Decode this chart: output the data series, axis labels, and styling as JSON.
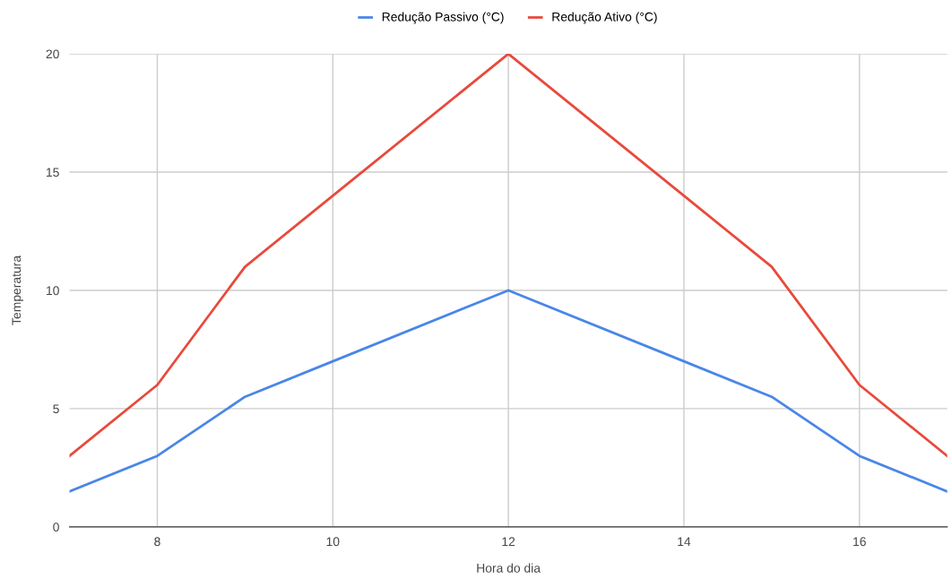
{
  "chart_data": {
    "type": "line",
    "xlabel": "Hora do dia",
    "ylabel": "Temperatura",
    "x": [
      7,
      8,
      9,
      10,
      12,
      14,
      15,
      16,
      17
    ],
    "series": [
      {
        "name": "Redução Passivo (°C)",
        "color": "#4a86e8",
        "values": [
          1.5,
          3,
          5.5,
          7,
          10,
          7,
          5.5,
          3,
          1.5
        ]
      },
      {
        "name": "Redução Ativo (°C)",
        "color": "#e84a3c",
        "values": [
          3,
          6,
          11,
          14,
          20,
          14,
          11,
          6,
          3
        ]
      }
    ],
    "xlim": [
      7,
      17
    ],
    "xticks": [
      8,
      10,
      12,
      14,
      16
    ],
    "ylim": [
      0,
      20
    ],
    "yticks": [
      0,
      5,
      10,
      15,
      20
    ],
    "grid": true,
    "legend": "top",
    "marker": "none",
    "line_style": "solid"
  }
}
